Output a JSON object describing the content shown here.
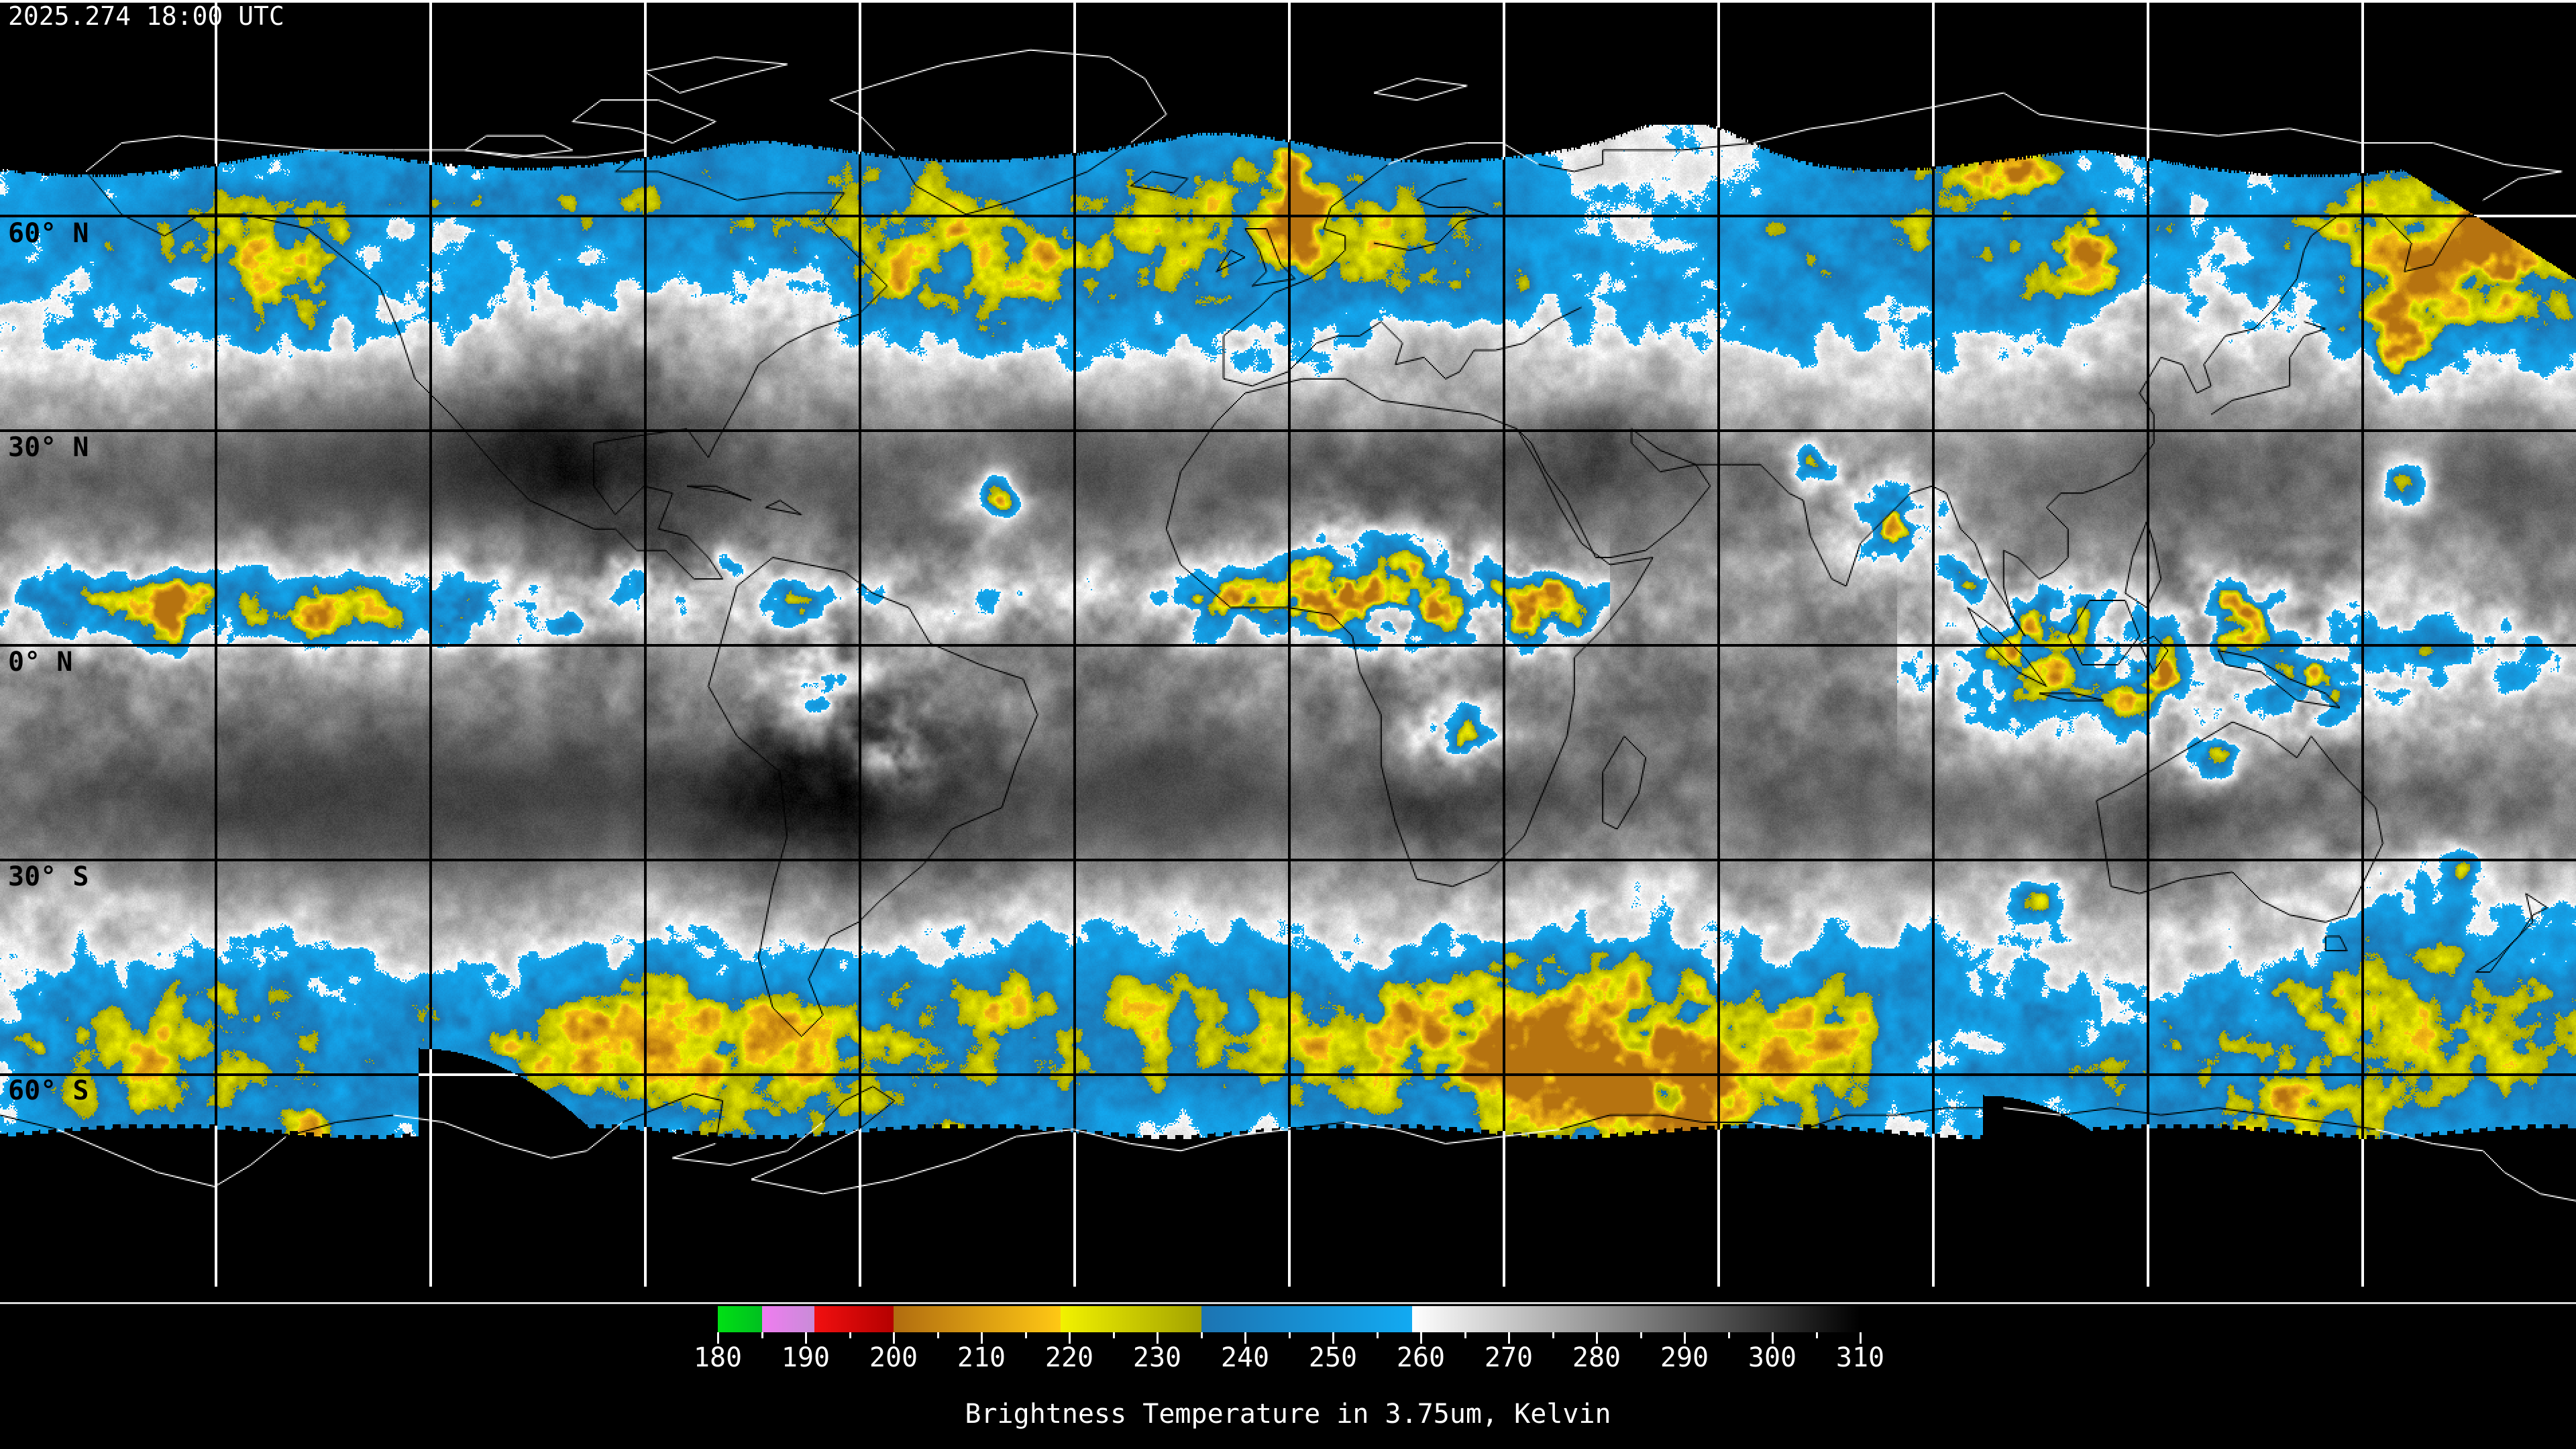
{
  "header": {
    "timestamp": "2025.274 18:00 UTC"
  },
  "map": {
    "latitude_labels": [
      {
        "text": "60° N",
        "lat": 60
      },
      {
        "text": "30° N",
        "lat": 30
      },
      {
        "text": "0° N",
        "lat": 0
      },
      {
        "text": "30° S",
        "lat": -30
      },
      {
        "text": "60° S",
        "lat": -60
      }
    ],
    "grid_interval_deg": 30,
    "grid_color_over_data": "#000000",
    "grid_color_over_void": "#ffffff",
    "coastline_color_over_data": "#000000",
    "coastline_color_over_void": "#ffffff",
    "background_color": "#000000",
    "cloud_blue": "#22a0e6",
    "cloud_yellow": "#c8c814",
    "cloud_orange": "#dc9014"
  },
  "colorbar": {
    "title": "Brightness Temperature in 3.75um, Kelvin",
    "unit": "Kelvin",
    "range": [
      180,
      310
    ],
    "ticks": [
      180,
      190,
      200,
      210,
      220,
      230,
      240,
      250,
      260,
      270,
      280,
      290,
      300,
      310
    ],
    "minor_tick_step": 5,
    "tick_color": "#ffffff",
    "label_color": "#ffffff",
    "segments": [
      {
        "from": 180,
        "to": 185,
        "start": "#00e014",
        "end": "#00c020"
      },
      {
        "from": 185,
        "to": 191,
        "start": "#f07cf0",
        "end": "#c88cd8"
      },
      {
        "from": 191,
        "to": 200,
        "start": "#f21010",
        "end": "#b40000"
      },
      {
        "from": 200,
        "to": 219,
        "start": "#b06c10",
        "end": "#ffc814"
      },
      {
        "from": 219,
        "to": 235,
        "start": "#f2f200",
        "end": "#a2a200"
      },
      {
        "from": 235,
        "to": 259,
        "start": "#1c74b2",
        "end": "#12aaf2"
      },
      {
        "from": 259,
        "to": 310,
        "start": "#ffffff",
        "end": "#000000"
      }
    ]
  }
}
